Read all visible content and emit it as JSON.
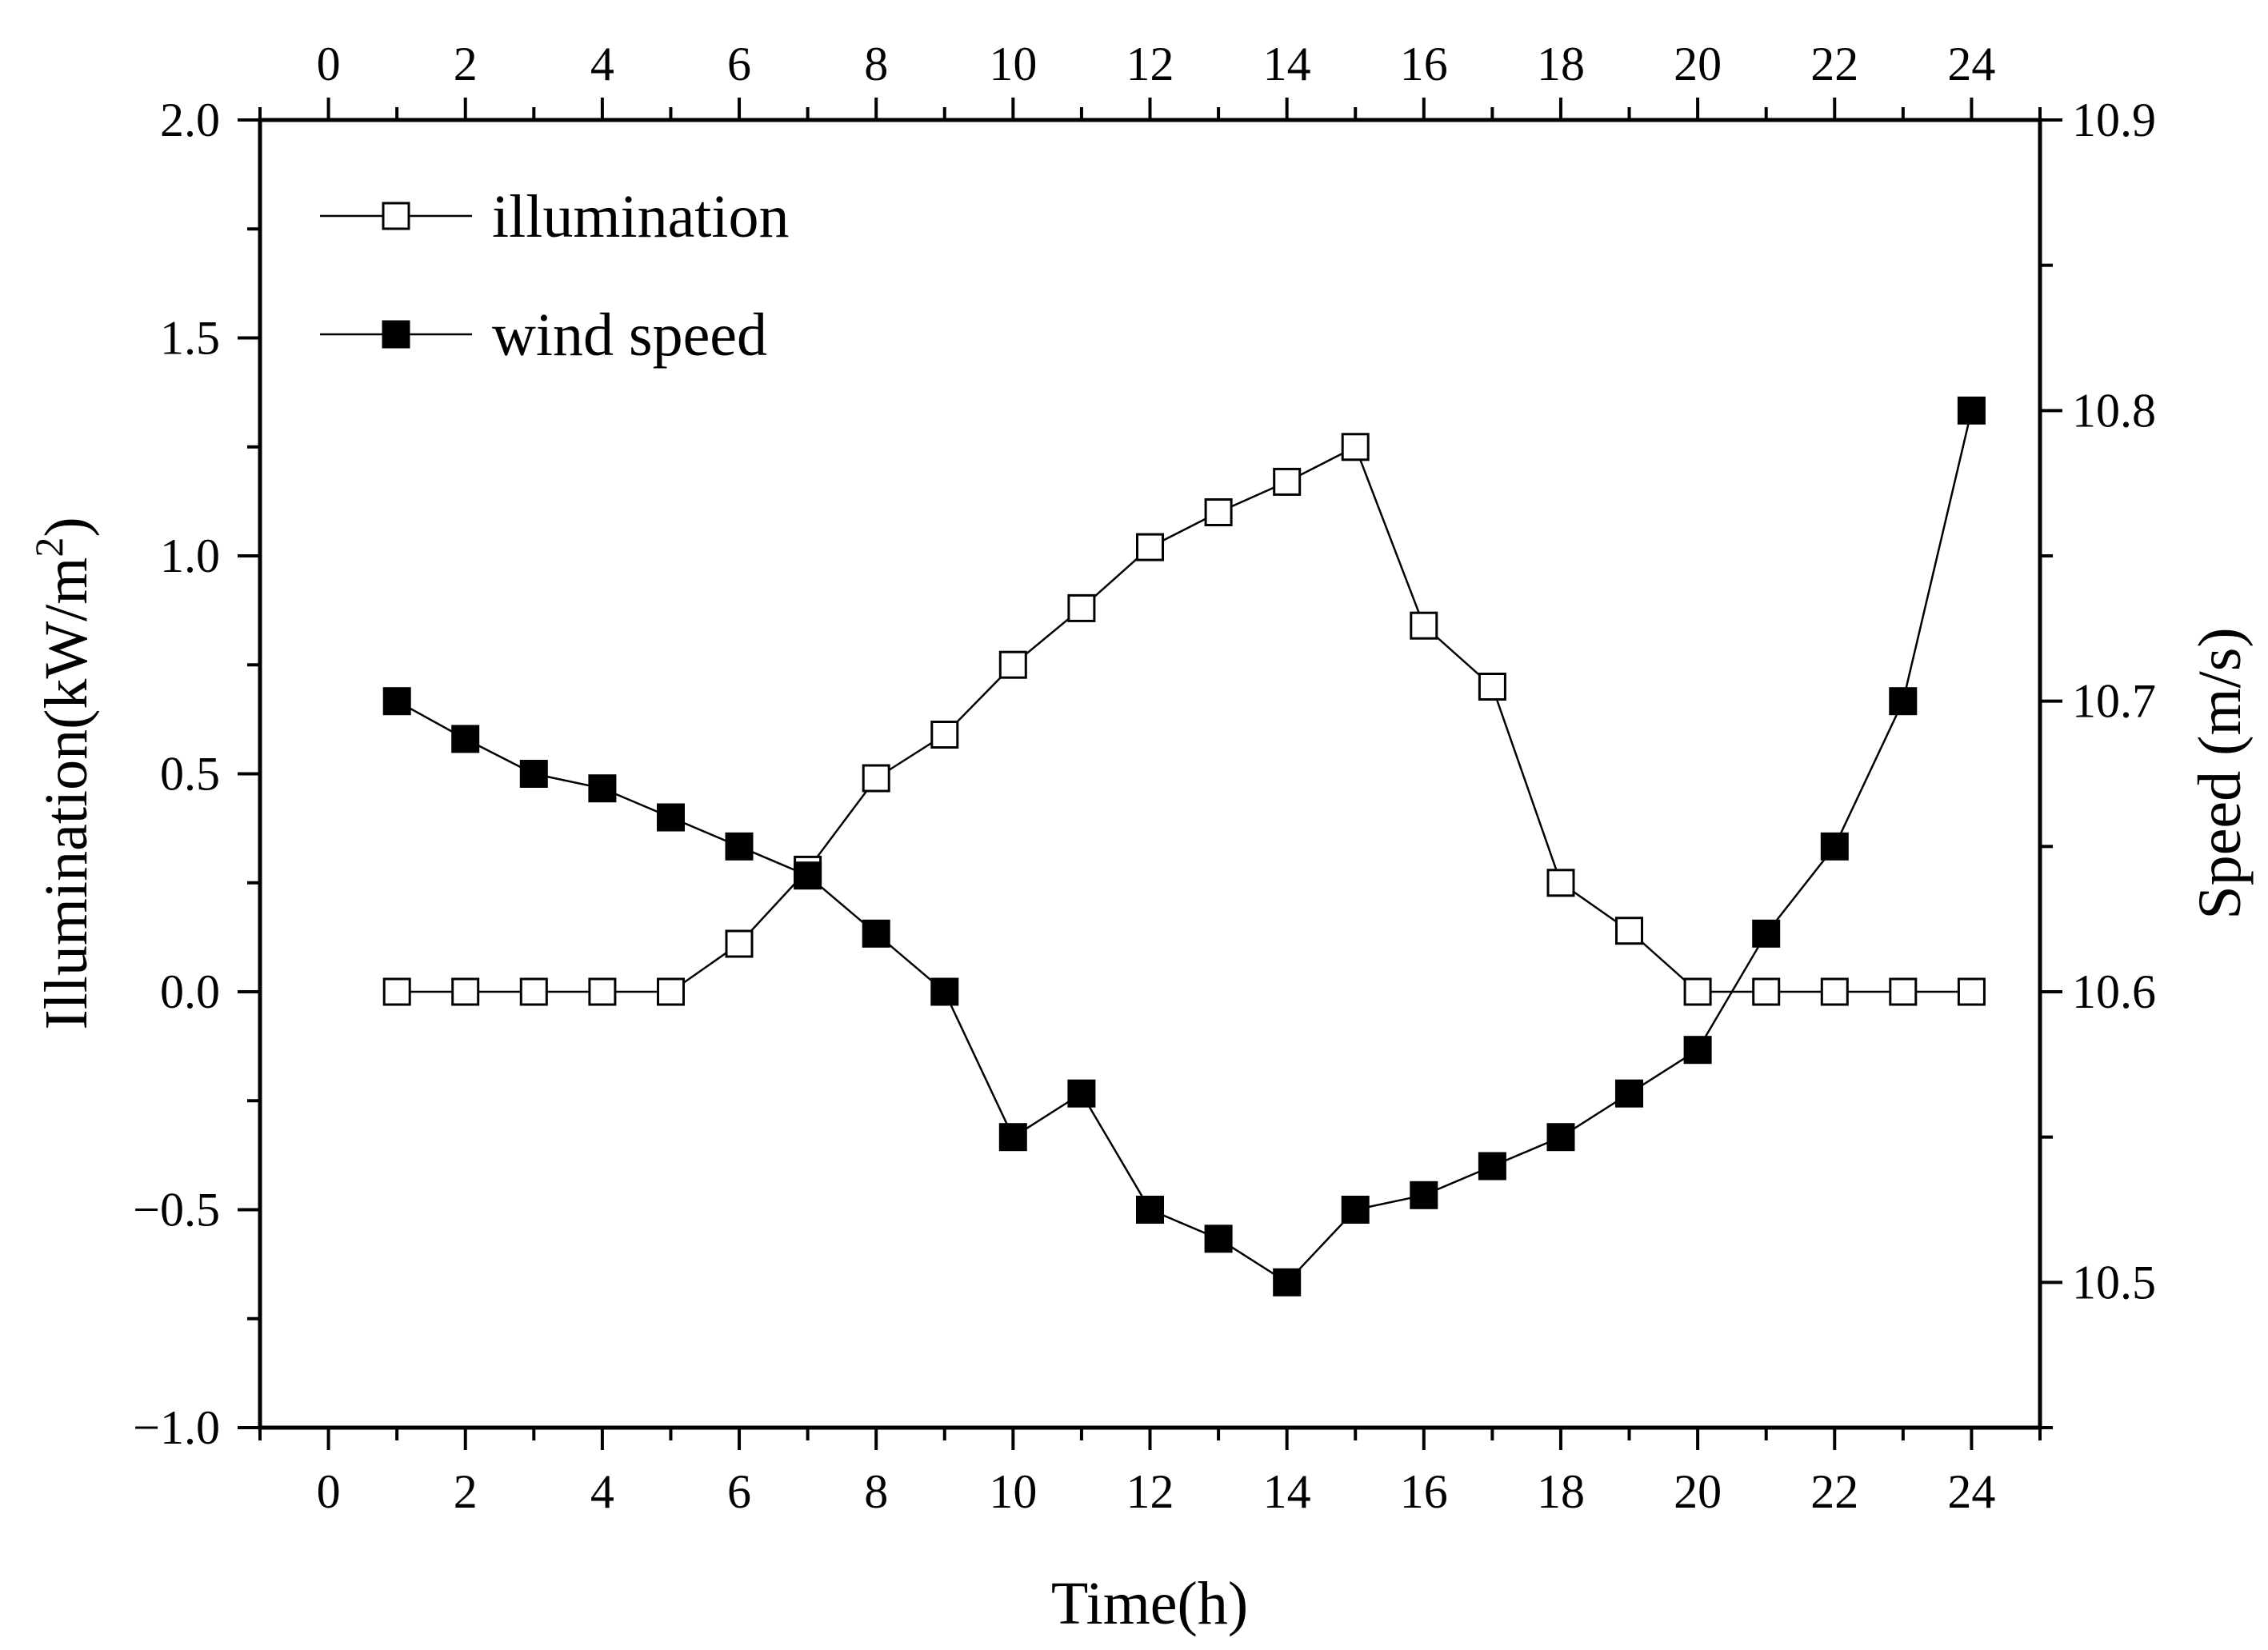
{
  "chart_data": {
    "type": "line",
    "xlabel": "Time(h)",
    "ylabel": "Illumination(kW/m",
    "ylabel_superscript": "2",
    "ylabel_close": ")",
    "y2label": "Speed (m/s)",
    "xlim": [
      -1,
      25
    ],
    "ylim": [
      -1.0,
      2.0
    ],
    "y2lim": [
      10.45,
      10.9
    ],
    "x_ticks": [
      0,
      2,
      4,
      6,
      8,
      10,
      12,
      14,
      16,
      18,
      20,
      22,
      24
    ],
    "x_tick_labels": [
      "0",
      "2",
      "4",
      "6",
      "8",
      "10",
      "12",
      "14",
      "16",
      "18",
      "20",
      "22",
      "24"
    ],
    "y_ticks": [
      -1.0,
      -0.5,
      0.0,
      0.5,
      1.0,
      1.5,
      2.0
    ],
    "y_tick_labels": [
      "−1.0",
      "−0.5",
      "0.0",
      "0.5",
      "1.0",
      "1.5",
      "2.0"
    ],
    "y2_ticks": [
      10.5,
      10.6,
      10.7,
      10.8,
      10.9
    ],
    "y2_tick_labels": [
      "10.5",
      "10.6",
      "10.7",
      "10.8",
      "10.9"
    ],
    "x": [
      1,
      2,
      3,
      4,
      5,
      6,
      7,
      8,
      9,
      10,
      11,
      12,
      13,
      14,
      15,
      16,
      17,
      18,
      19,
      20,
      21,
      22,
      23,
      24
    ],
    "series": [
      {
        "name": "illumination",
        "axis": "left",
        "marker": "open-square",
        "values": [
          0,
          0,
          0,
          0,
          0,
          0.11,
          0.28,
          0.49,
          0.59,
          0.75,
          0.88,
          1.02,
          1.1,
          1.17,
          1.25,
          0.84,
          0.7,
          0.25,
          0.14,
          0,
          0,
          0,
          0,
          0
        ]
      },
      {
        "name": "wind speed",
        "axis": "right",
        "marker": "filled-square",
        "values": [
          10.7,
          10.687,
          10.675,
          10.67,
          10.66,
          10.65,
          10.64,
          10.62,
          10.6,
          10.55,
          10.565,
          10.525,
          10.515,
          10.5,
          10.525,
          10.53,
          10.54,
          10.55,
          10.565,
          10.58,
          10.62,
          10.65,
          10.7,
          10.8
        ]
      }
    ],
    "legend_position": "top-left",
    "grid": false
  }
}
